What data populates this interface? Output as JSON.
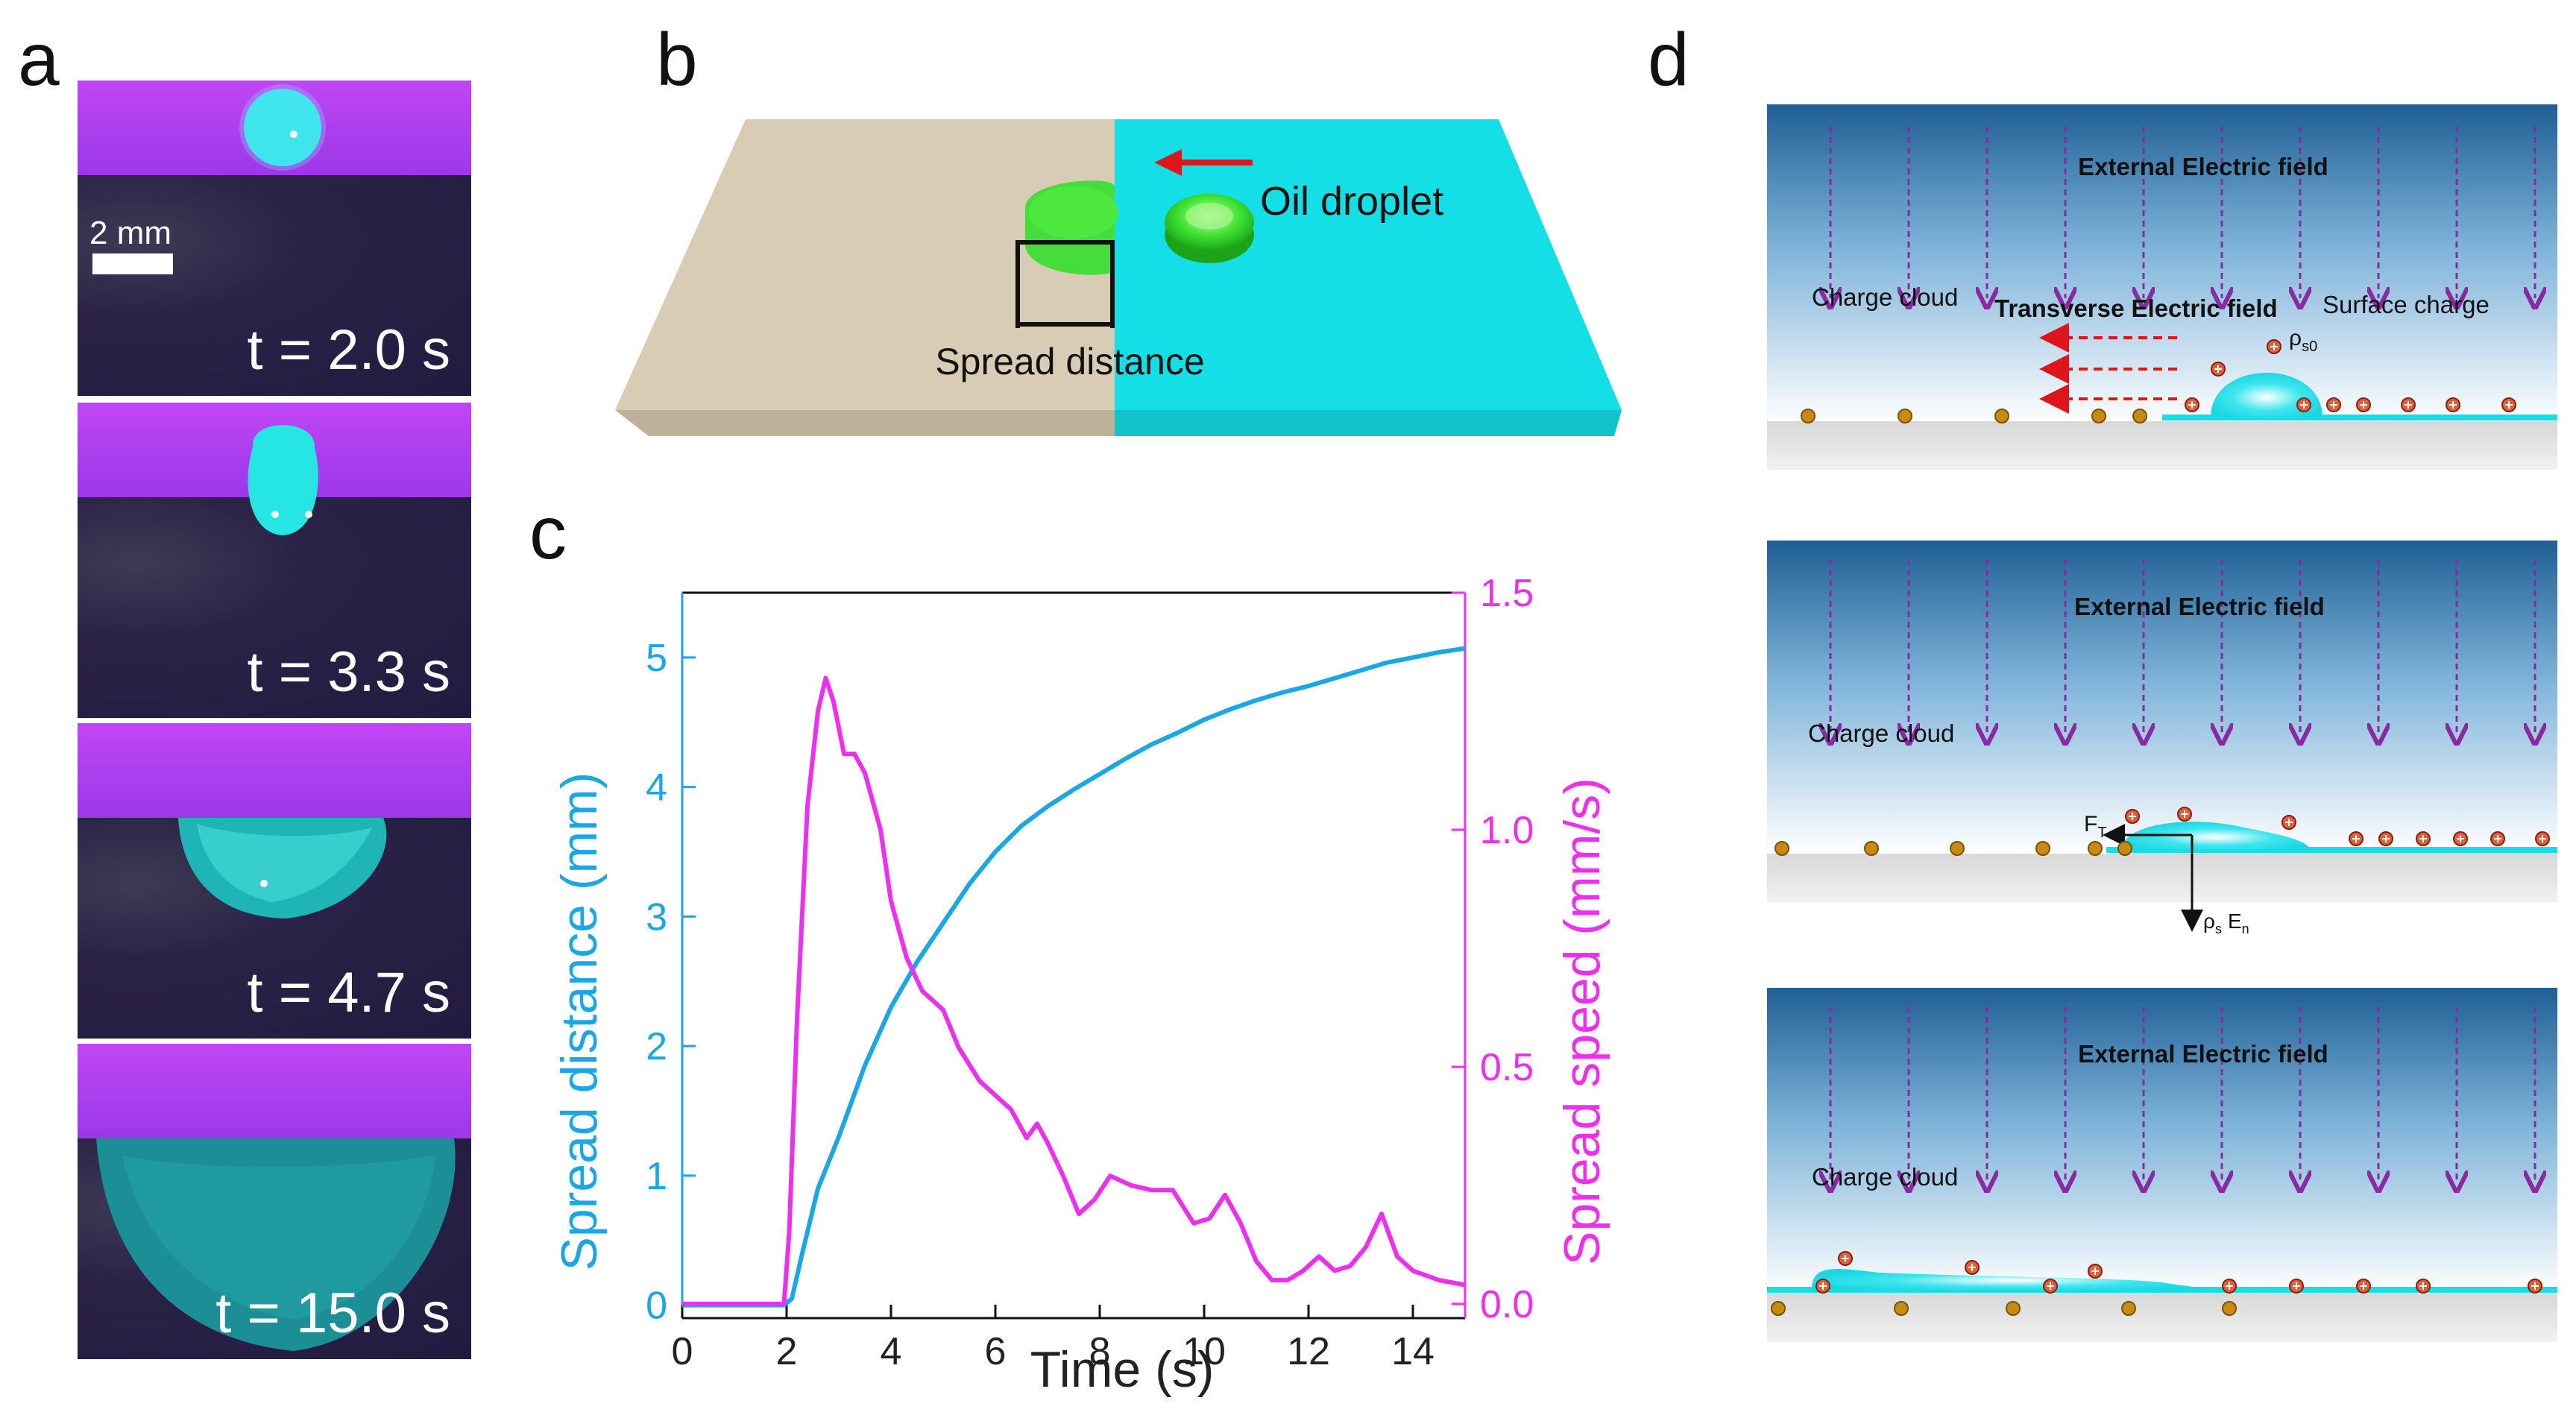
{
  "panels": {
    "a": "a",
    "b": "b",
    "c": "c",
    "d": "d"
  },
  "panel_a": {
    "scale_label": "2 mm",
    "frames": [
      {
        "label": "t = 2.0 s"
      },
      {
        "label": "t = 3.3 s"
      },
      {
        "label": "t = 4.7 s"
      },
      {
        "label": "t = 15.0 s"
      }
    ]
  },
  "panel_b": {
    "droplet_label": "Oil droplet",
    "spread_label": "Spread distance",
    "colors": {
      "substrate_left": "#d8ccb4",
      "substrate_right": "#15dfe6",
      "droplet": "#3be02f",
      "arrow": "#e0141b"
    }
  },
  "chart_data": {
    "type": "line",
    "xlabel": "Time (s)",
    "ylabel": "Spread distance (mm)",
    "y2label": "Spread speed (mm/s)",
    "xlim": [
      0,
      15
    ],
    "ylim": [
      -0.1,
      5.5
    ],
    "y2lim": [
      -0.03,
      1.5
    ],
    "xticks": [
      0,
      2,
      4,
      6,
      8,
      10,
      12,
      14
    ],
    "yticks": [
      0,
      1,
      2,
      3,
      4,
      5
    ],
    "y2ticks": [
      0.0,
      0.5,
      1.0,
      1.5
    ],
    "y2tick_labels": [
      "0.0",
      "0.5",
      "1.0",
      "1.5"
    ],
    "colors": {
      "distance": "#1aa7e8",
      "speed": "#f02ef0"
    },
    "series": [
      {
        "axis": "left",
        "x": [
          0,
          1.95,
          2.1,
          2.3,
          2.6,
          3.0,
          3.5,
          4.0,
          4.5,
          5.0,
          5.5,
          6.0,
          6.5,
          7.0,
          7.5,
          8.0,
          8.5,
          9.0,
          9.5,
          10.0,
          10.5,
          11.0,
          11.5,
          12.0,
          12.5,
          13.0,
          13.5,
          14.0,
          14.5,
          15.0
        ],
        "values": [
          0,
          0,
          0.05,
          0.4,
          0.9,
          1.3,
          1.85,
          2.3,
          2.65,
          2.95,
          3.25,
          3.5,
          3.7,
          3.85,
          3.98,
          4.1,
          4.22,
          4.33,
          4.42,
          4.52,
          4.6,
          4.67,
          4.73,
          4.78,
          4.84,
          4.9,
          4.96,
          5.0,
          5.04,
          5.07
        ]
      },
      {
        "axis": "right",
        "x": [
          0,
          1.95,
          2.05,
          2.2,
          2.4,
          2.6,
          2.75,
          2.9,
          3.1,
          3.3,
          3.5,
          3.8,
          4.0,
          4.3,
          4.6,
          5.0,
          5.3,
          5.7,
          6.0,
          6.3,
          6.6,
          6.8,
          7.0,
          7.3,
          7.6,
          7.9,
          8.2,
          8.6,
          9.0,
          9.4,
          9.8,
          10.1,
          10.4,
          10.7,
          11.0,
          11.3,
          11.6,
          11.9,
          12.2,
          12.5,
          12.8,
          13.1,
          13.4,
          13.7,
          14.0,
          14.5,
          15.0
        ],
        "values": [
          0,
          0,
          0.15,
          0.6,
          1.05,
          1.25,
          1.32,
          1.27,
          1.16,
          1.16,
          1.12,
          1.0,
          0.85,
          0.73,
          0.66,
          0.62,
          0.54,
          0.47,
          0.44,
          0.41,
          0.35,
          0.38,
          0.34,
          0.27,
          0.19,
          0.22,
          0.27,
          0.25,
          0.24,
          0.24,
          0.17,
          0.18,
          0.23,
          0.17,
          0.09,
          0.05,
          0.05,
          0.07,
          0.1,
          0.07,
          0.08,
          0.12,
          0.19,
          0.1,
          0.07,
          0.05,
          0.04
        ]
      }
    ]
  },
  "panel_d": {
    "external_field": "External Electric field",
    "charge_cloud": "Charge cloud",
    "transverse_field": "Transverse Electric field",
    "surface_charge": "Surface charge",
    "rho_s0": "ρ",
    "rho_s0_sub": "s0",
    "force_label": "F",
    "force_sub": "T",
    "rho_s_label": "ρ",
    "rho_s_sub": "s",
    "e_label": "E",
    "e_sub": "n"
  }
}
